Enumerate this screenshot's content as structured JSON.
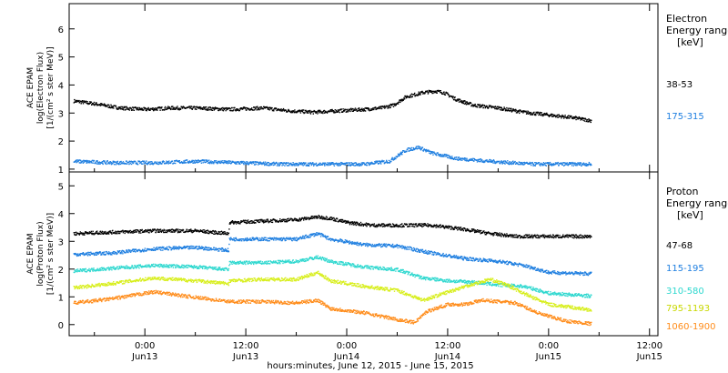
{
  "chart_data": {
    "type": "scatter",
    "xlabel": "hours:minutes, June 12, 2015 - June 15, 2015",
    "x_ticks": [
      {
        "hours": 24,
        "time": "0:00",
        "day": "Jun13"
      },
      {
        "hours": 36,
        "time": "12:00",
        "day": "Jun13"
      },
      {
        "hours": 48,
        "time": "0:00",
        "day": "Jun14"
      },
      {
        "hours": 60,
        "time": "12:00",
        "day": "Jun14"
      },
      {
        "hours": 72,
        "time": "0:00",
        "day": "Jun15"
      },
      {
        "hours": 84,
        "time": "12:00",
        "day": "Jun15"
      }
    ],
    "xlim": [
      15,
      85
    ],
    "panels": [
      {
        "id": "electron",
        "ylabel_lines": [
          "ACE EPAM",
          "log(Electron Flux)",
          "[1/(cm² s ster MeV)]"
        ],
        "ylim": [
          0.9,
          6.9
        ],
        "yticks": [
          1,
          2,
          3,
          4,
          5,
          6
        ],
        "legend_title_lines": [
          "Electron",
          "Energy range",
          "[keV]"
        ],
        "series": [
          {
            "name": "38-53",
            "color": "#000000",
            "points": [
              [
                15.5,
                3.45
              ],
              [
                18,
                3.35
              ],
              [
                21,
                3.2
              ],
              [
                24,
                3.15
              ],
              [
                27,
                3.2
              ],
              [
                30,
                3.2
              ],
              [
                34,
                3.15
              ],
              [
                38,
                3.2
              ],
              [
                41,
                3.1
              ],
              [
                44,
                3.05
              ],
              [
                47,
                3.1
              ],
              [
                50,
                3.15
              ],
              [
                52,
                3.2
              ],
              [
                53.5,
                3.3
              ],
              [
                55,
                3.6
              ],
              [
                57,
                3.75
              ],
              [
                58.5,
                3.8
              ],
              [
                59.5,
                3.75
              ],
              [
                61,
                3.5
              ],
              [
                63,
                3.3
              ],
              [
                66,
                3.2
              ],
              [
                69,
                3.05
              ],
              [
                72,
                2.95
              ],
              [
                75,
                2.85
              ],
              [
                77,
                2.75
              ]
            ]
          },
          {
            "name": "175-315",
            "color": "#1f7fe0",
            "points": [
              [
                15.5,
                1.3
              ],
              [
                20,
                1.25
              ],
              [
                25,
                1.25
              ],
              [
                30,
                1.3
              ],
              [
                35,
                1.25
              ],
              [
                40,
                1.2
              ],
              [
                45,
                1.2
              ],
              [
                50,
                1.2
              ],
              [
                53,
                1.3
              ],
              [
                55,
                1.7
              ],
              [
                56.5,
                1.8
              ],
              [
                58,
                1.6
              ],
              [
                61,
                1.4
              ],
              [
                65,
                1.3
              ],
              [
                70,
                1.2
              ],
              [
                77,
                1.2
              ]
            ]
          }
        ]
      },
      {
        "id": "proton",
        "ylabel_lines": [
          "ACE EPAM",
          "log(Proton Flux)",
          "[1/(cm² s ster MeV)]"
        ],
        "ylim": [
          -0.4,
          5.5
        ],
        "yticks": [
          0,
          1,
          2,
          3,
          4,
          5
        ],
        "legend_title_lines": [
          "Proton",
          "Energy range",
          "[keV]"
        ],
        "series": [
          {
            "name": "47-68",
            "color": "#000000",
            "points": [
              [
                15.5,
                3.3
              ],
              [
                20,
                3.35
              ],
              [
                25,
                3.4
              ],
              [
                30,
                3.4
              ],
              [
                33.9,
                3.3
              ],
              [
                34,
                3.7
              ],
              [
                38,
                3.75
              ],
              [
                42,
                3.8
              ],
              [
                44.5,
                3.9
              ],
              [
                46,
                3.85
              ],
              [
                48,
                3.7
              ],
              [
                51,
                3.6
              ],
              [
                54,
                3.6
              ],
              [
                58,
                3.6
              ],
              [
                62,
                3.45
              ],
              [
                65,
                3.3
              ],
              [
                68,
                3.2
              ],
              [
                72,
                3.2
              ],
              [
                77,
                3.2
              ]
            ]
          },
          {
            "name": "115-195",
            "color": "#1f7fe0",
            "points": [
              [
                15.5,
                2.55
              ],
              [
                20,
                2.6
              ],
              [
                25,
                2.75
              ],
              [
                30,
                2.8
              ],
              [
                33.9,
                2.7
              ],
              [
                34,
                3.1
              ],
              [
                38,
                3.1
              ],
              [
                42,
                3.1
              ],
              [
                44.5,
                3.3
              ],
              [
                46,
                3.1
              ],
              [
                50,
                2.9
              ],
              [
                54,
                2.85
              ],
              [
                58,
                2.6
              ],
              [
                62,
                2.4
              ],
              [
                66,
                2.3
              ],
              [
                69,
                2.15
              ],
              [
                72,
                1.9
              ],
              [
                77,
                1.85
              ]
            ]
          },
          {
            "name": "310-580",
            "color": "#2ed8cf",
            "points": [
              [
                15.5,
                1.95
              ],
              [
                20,
                2.05
              ],
              [
                25,
                2.15
              ],
              [
                30,
                2.1
              ],
              [
                33.9,
                2.0
              ],
              [
                34,
                2.25
              ],
              [
                38,
                2.25
              ],
              [
                42,
                2.3
              ],
              [
                44.5,
                2.45
              ],
              [
                46,
                2.3
              ],
              [
                50,
                2.1
              ],
              [
                54,
                2.0
              ],
              [
                57,
                1.7
              ],
              [
                60,
                1.6
              ],
              [
                63,
                1.55
              ],
              [
                66,
                1.45
              ],
              [
                69,
                1.4
              ],
              [
                72,
                1.15
              ],
              [
                77,
                1.05
              ]
            ]
          },
          {
            "name": "795-1193",
            "color": "#d7ee1a",
            "points": [
              [
                15.5,
                1.35
              ],
              [
                20,
                1.5
              ],
              [
                25,
                1.7
              ],
              [
                30,
                1.6
              ],
              [
                33.9,
                1.5
              ],
              [
                34,
                1.6
              ],
              [
                38,
                1.65
              ],
              [
                42,
                1.65
              ],
              [
                44.5,
                1.9
              ],
              [
                46,
                1.6
              ],
              [
                50,
                1.4
              ],
              [
                54,
                1.25
              ],
              [
                57,
                0.9
              ],
              [
                59,
                1.1
              ],
              [
                62,
                1.4
              ],
              [
                65,
                1.65
              ],
              [
                67,
                1.45
              ],
              [
                70,
                1.0
              ],
              [
                72,
                0.75
              ],
              [
                77,
                0.55
              ]
            ]
          },
          {
            "name": "1060-1900",
            "color": "#ff8c1a",
            "points": [
              [
                15.5,
                0.8
              ],
              [
                20,
                0.95
              ],
              [
                25,
                1.2
              ],
              [
                30,
                1.0
              ],
              [
                34,
                0.85
              ],
              [
                38,
                0.85
              ],
              [
                42,
                0.8
              ],
              [
                44.5,
                0.9
              ],
              [
                46,
                0.6
              ],
              [
                50,
                0.45
              ],
              [
                54,
                0.2
              ],
              [
                56,
                0.1
              ],
              [
                57.5,
                0.5
              ],
              [
                60,
                0.75
              ],
              [
                62,
                0.75
              ],
              [
                64,
                0.9
              ],
              [
                66,
                0.85
              ],
              [
                68,
                0.8
              ],
              [
                71,
                0.4
              ],
              [
                74,
                0.15
              ],
              [
                77,
                0.05
              ]
            ]
          }
        ]
      }
    ]
  }
}
